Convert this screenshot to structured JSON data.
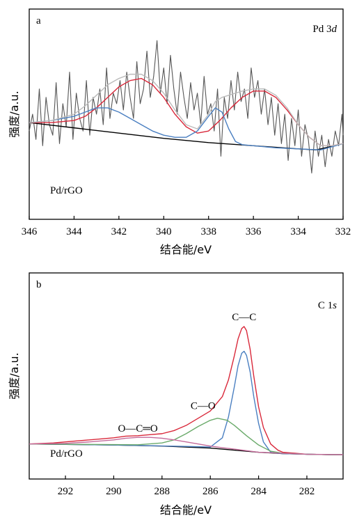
{
  "chart_data": [
    {
      "type": "line",
      "panel_label": "a",
      "corner_label": "Pd 3",
      "corner_label_italic": "d",
      "sample_label": "Pd/rGO",
      "xlabel": "结合能/eV",
      "ylabel": "强度/a.u.",
      "xlim": [
        346,
        332
      ],
      "x_reversed": true,
      "ylim": [
        0,
        100
      ],
      "y_ticks_shown": false,
      "grid": false,
      "x_ticks": [
        346,
        344,
        342,
        340,
        338,
        336,
        334,
        332
      ],
      "series": [
        {
          "color": "#555555",
          "x": [
            346,
            345.85,
            345.7,
            345.55,
            345.4,
            345.25,
            345.1,
            344.95,
            344.8,
            344.65,
            344.5,
            344.35,
            344.2,
            344.05,
            343.9,
            343.75,
            343.6,
            343.45,
            343.3,
            343.15,
            343.0,
            342.85,
            342.7,
            342.55,
            342.4,
            342.25,
            342.1,
            341.95,
            341.8,
            341.65,
            341.5,
            341.35,
            341.2,
            341.05,
            340.9,
            340.75,
            340.6,
            340.45,
            340.3,
            340.15,
            340.0,
            339.85,
            339.7,
            339.55,
            339.4,
            339.25,
            339.1,
            338.95,
            338.8,
            338.65,
            338.5,
            338.35,
            338.2,
            338.05,
            337.9,
            337.75,
            337.6,
            337.45,
            337.3,
            337.15,
            337.0,
            336.85,
            336.7,
            336.55,
            336.4,
            336.25,
            336.1,
            335.95,
            335.8,
            335.65,
            335.5,
            335.35,
            335.2,
            335.05,
            334.9,
            334.75,
            334.6,
            334.45,
            334.3,
            334.15,
            334.0,
            333.85,
            333.7,
            333.55,
            333.4,
            333.25,
            333.1,
            332.95,
            332.8,
            332.65,
            332.5,
            332.35,
            332.2,
            332.05,
            332.0
          ],
          "y": [
            42,
            50,
            38,
            62,
            35,
            58,
            45,
            40,
            65,
            36,
            55,
            44,
            70,
            38,
            60,
            48,
            42,
            66,
            40,
            58,
            50,
            62,
            45,
            72,
            48,
            60,
            55,
            66,
            52,
            70,
            58,
            48,
            75,
            55,
            62,
            80,
            58,
            68,
            85,
            60,
            72,
            55,
            78,
            62,
            50,
            70,
            58,
            48,
            65,
            52,
            60,
            45,
            68,
            50,
            55,
            42,
            62,
            30,
            58,
            48,
            66,
            52,
            70,
            56,
            62,
            48,
            72,
            58,
            66,
            50,
            62,
            45,
            58,
            40,
            55,
            36,
            50,
            28,
            48,
            35,
            52,
            30,
            45,
            38,
            22,
            42,
            30,
            40,
            25,
            38,
            30,
            42,
            35,
            50,
            40
          ]
        },
        {
          "color": "#000000",
          "x": [
            346,
            344,
            342,
            340,
            338,
            336,
            334,
            333.2,
            332
          ],
          "y": [
            46,
            43.5,
            41,
            38.5,
            36.5,
            35,
            33.5,
            33,
            36
          ]
        },
        {
          "color": "#d9283a",
          "x": [
            346,
            345,
            344,
            343.5,
            343,
            342.5,
            342,
            341.5,
            341,
            340.5,
            340,
            339.5,
            339,
            338.5,
            338,
            337.5,
            337,
            336.5,
            336,
            335.5,
            335,
            334.5,
            334,
            333.5,
            333,
            332.5,
            332
          ],
          "y": [
            46,
            46,
            47,
            49,
            53,
            58,
            63,
            66,
            67,
            64,
            58,
            50,
            44,
            41,
            42,
            47,
            53,
            58,
            61,
            61,
            58,
            52,
            45,
            39,
            35,
            35,
            36
          ]
        },
        {
          "color": "#4a7fc1",
          "x": [
            346,
            345,
            344,
            343.5,
            343,
            342.5,
            342,
            341.5,
            341,
            340.5,
            340,
            339.5,
            339,
            338.5,
            338,
            337.7,
            337.4,
            337.1,
            336.8,
            336.5,
            336,
            335,
            334,
            333,
            332
          ],
          "y": [
            46,
            47,
            49,
            51,
            53,
            53,
            51,
            48,
            45,
            42,
            40,
            39,
            39,
            42,
            49,
            53,
            51,
            43,
            37,
            35.5,
            35,
            34,
            33.5,
            33,
            36
          ]
        },
        {
          "color": "#bbbbbb",
          "x": [
            346,
            345,
            344,
            343.5,
            343,
            342.5,
            342,
            341.5,
            341,
            340.5,
            340,
            339.5,
            339,
            338.5,
            338,
            337.7,
            337.4,
            337.1,
            336.8,
            336.5,
            336,
            335.5,
            335,
            334.5,
            334,
            333.5,
            333,
            332.5,
            332
          ],
          "y": [
            46,
            47,
            50,
            54,
            59,
            64,
            67,
            69,
            69,
            66,
            60,
            52,
            45,
            43,
            50,
            56,
            58,
            59,
            60,
            61,
            62,
            62,
            59,
            53,
            45,
            39,
            35,
            35,
            36
          ]
        }
      ]
    },
    {
      "type": "line",
      "panel_label": "b",
      "corner_label": "C 1",
      "corner_label_italic": "s",
      "sample_label": "Pd/rGO",
      "xlabel": "结合能/eV",
      "ylabel": "强度/a.u.",
      "xlim": [
        293.5,
        280.5
      ],
      "x_reversed": true,
      "ylim": [
        0,
        100
      ],
      "y_ticks_shown": false,
      "grid": false,
      "x_ticks": [
        292,
        290,
        288,
        286,
        284,
        282
      ],
      "annotations": [
        {
          "text": "C—C",
          "x": 284.6,
          "y": 77
        },
        {
          "text": "C—O",
          "x": 286.3,
          "y": 34
        },
        {
          "text": "O—C═O",
          "x": 289.0,
          "y": 23
        }
      ],
      "series": [
        {
          "color": "#000000",
          "x": [
            293.5,
            292,
            290,
            288,
            286,
            284,
            283,
            282,
            281,
            280.5
          ],
          "y": [
            17,
            16.8,
            16.5,
            16,
            15,
            13,
            12.3,
            12,
            11.8,
            11.8
          ]
        },
        {
          "color": "#d9283a",
          "x": [
            293.5,
            292.5,
            291.5,
            290.5,
            290,
            289.5,
            289,
            288.5,
            288,
            287.5,
            287,
            286.5,
            286,
            285.5,
            285.25,
            285,
            284.85,
            284.7,
            284.6,
            284.5,
            284.35,
            284.2,
            284,
            283.8,
            283.5,
            283.2,
            283,
            282.5,
            282,
            281,
            280.5
          ],
          "y": [
            17,
            17.5,
            18.5,
            19.5,
            20,
            20.8,
            21,
            21.5,
            22,
            23.5,
            26,
            29.5,
            33,
            40,
            48,
            60,
            68,
            73,
            74,
            72,
            63,
            50,
            35,
            25,
            17,
            14,
            13,
            12.5,
            12,
            11.8,
            11.8
          ]
        },
        {
          "color": "#4a7fc1",
          "x": [
            293.5,
            290,
            287,
            286,
            285.5,
            285.25,
            285,
            284.85,
            284.7,
            284.6,
            284.5,
            284.35,
            284.2,
            284,
            283.8,
            283.5,
            283.2,
            283,
            282,
            281,
            280.5
          ],
          "y": [
            17,
            16.5,
            15.8,
            15.5,
            20,
            30,
            45,
            55,
            61,
            62,
            60,
            52,
            40,
            27,
            18,
            13,
            12.5,
            12.3,
            12,
            11.8,
            11.8
          ]
        },
        {
          "color": "#6aaa6a",
          "x": [
            293.5,
            291,
            289,
            288,
            287.5,
            287,
            286.5,
            286,
            285.7,
            285.3,
            285,
            284.5,
            284,
            283.5,
            283,
            282,
            281,
            280.5
          ],
          "y": [
            17,
            16.8,
            16.6,
            17.5,
            19,
            22,
            25.5,
            28.5,
            29.5,
            28.5,
            26,
            21,
            16.5,
            13.5,
            12.5,
            12,
            11.8,
            11.8
          ]
        },
        {
          "color": "#c46a9a",
          "x": [
            293.5,
            292,
            291,
            290,
            289.5,
            289,
            288.5,
            288,
            287.5,
            287,
            286.5,
            286,
            285.5,
            285,
            284,
            282,
            280.5
          ],
          "y": [
            17,
            17.3,
            18,
            19,
            19.8,
            20.2,
            20.2,
            19.8,
            19,
            18,
            17,
            16,
            15.2,
            14.5,
            13,
            12,
            11.8
          ]
        }
      ]
    }
  ]
}
